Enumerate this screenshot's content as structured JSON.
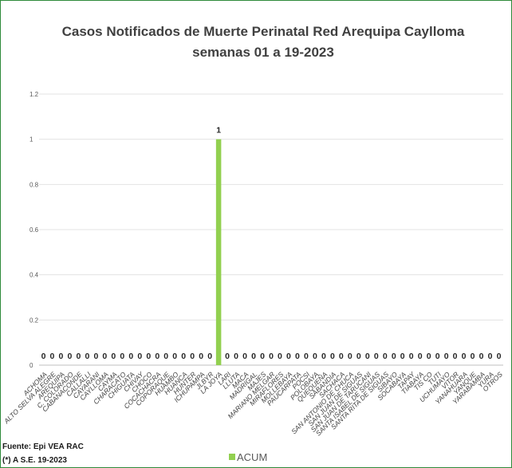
{
  "chart_data": {
    "type": "bar",
    "title": "Casos Notificados de Muerte Perinatal Red Arequipa Caylloma",
    "subtitle": "semanas 01 a 19-2023",
    "categories": [
      "ACHOMA",
      "ALTO SELVA ALEGRE",
      "AREQUIPA",
      "C. COLORADO",
      "CABANACONDE",
      "CALLALLI",
      "CAYARANI",
      "CAYLLOMA",
      "CAYMA",
      "CHARACATO",
      "CHIGUATA",
      "CHIVAY",
      "CHOCO",
      "COCACHACRA",
      "COPORAQUE",
      "HUAMBO",
      "HUANCA",
      "HUNTER",
      "ICHUPAMPA",
      "JLBYR",
      "LA JOYA",
      "LARI",
      "LLUTA",
      "MACA",
      "MADRIGAL",
      "MAJES",
      "MARIANO MELGAR",
      "MIRAFLORES",
      "MOLLEBAYA",
      "PAUCARPATA",
      "POCSI",
      "POLOBAYA",
      "QUEQUEÑA",
      "SABANDIA",
      "SACHACA",
      "SAN ANTONIO DE CHUCA",
      "SAN JUAN DE SIGUAS",
      "SAN JUAN DE TARUCANI",
      "SANTA ISABEL DE SIGUAS",
      "SANTA RITA DE SIGUAS",
      "SIBAYO",
      "SOCABAYA",
      "TAPAY",
      "TIABAYA",
      "TIS CO",
      "TUTI",
      "UCHUMAYO",
      "VITOR",
      "YANAHUARA",
      "YANQUE",
      "YARABAMBA",
      "YURA",
      "OTROS"
    ],
    "series": [
      {
        "name": "ACUM",
        "values": [
          0,
          0,
          0,
          0,
          0,
          0,
          0,
          0,
          0,
          0,
          0,
          0,
          0,
          0,
          0,
          0,
          0,
          0,
          0,
          0,
          1,
          0,
          0,
          0,
          0,
          0,
          0,
          0,
          0,
          0,
          0,
          0,
          0,
          0,
          0,
          0,
          0,
          0,
          0,
          0,
          0,
          0,
          0,
          0,
          0,
          0,
          0,
          0,
          0,
          0,
          0,
          0,
          0
        ]
      }
    ],
    "ylim": [
      0,
      1.2
    ],
    "yticks": [
      "0",
      "0.2",
      "0.4",
      "0.6",
      "0.8",
      "1",
      "1.2"
    ],
    "grid": true,
    "legend": "bottom",
    "bar_color": "#92d050"
  },
  "footer": {
    "source": "Fuente: Epi VEA RAC",
    "note": "(*) A S.E. 19-2023"
  }
}
